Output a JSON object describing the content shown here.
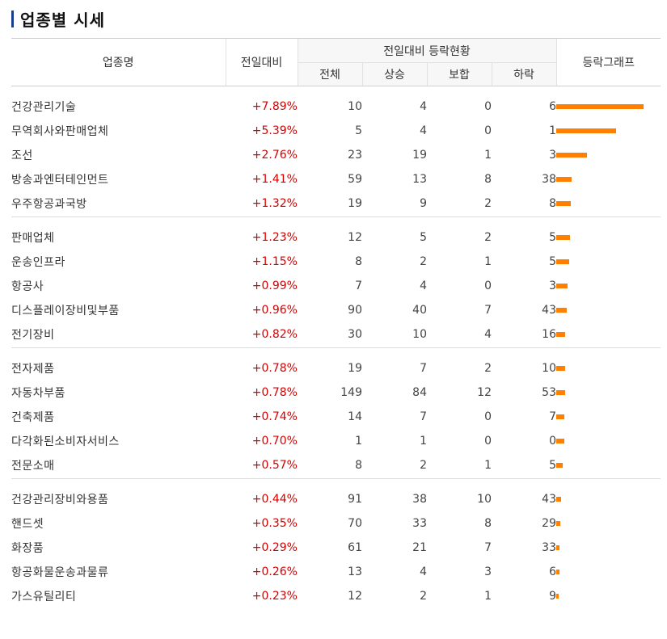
{
  "title": "업종별 시세",
  "headers": {
    "name": "업종명",
    "change": "전일대비",
    "status_group": "전일대비 등락현황",
    "total": "전체",
    "up": "상승",
    "flat": "보합",
    "down": "하락",
    "graph": "등락그래프"
  },
  "colors": {
    "accent": "#1a3d8f",
    "rise": "#d60000",
    "bar": "#ff7f00"
  },
  "groups": [
    [
      {
        "name": "건강관리기술",
        "change": "+7.89%",
        "pct": 7.89,
        "total": "10",
        "up": "4",
        "flat": "0",
        "down": "6"
      },
      {
        "name": "무역회사와판매업체",
        "change": "+5.39%",
        "pct": 5.39,
        "total": "5",
        "up": "4",
        "flat": "0",
        "down": "1"
      },
      {
        "name": "조선",
        "change": "+2.76%",
        "pct": 2.76,
        "total": "23",
        "up": "19",
        "flat": "1",
        "down": "3"
      },
      {
        "name": "방송과엔터테인먼트",
        "change": "+1.41%",
        "pct": 1.41,
        "total": "59",
        "up": "13",
        "flat": "8",
        "down": "38"
      },
      {
        "name": "우주항공과국방",
        "change": "+1.32%",
        "pct": 1.32,
        "total": "19",
        "up": "9",
        "flat": "2",
        "down": "8"
      }
    ],
    [
      {
        "name": "판매업체",
        "change": "+1.23%",
        "pct": 1.23,
        "total": "12",
        "up": "5",
        "flat": "2",
        "down": "5"
      },
      {
        "name": "운송인프라",
        "change": "+1.15%",
        "pct": 1.15,
        "total": "8",
        "up": "2",
        "flat": "1",
        "down": "5"
      },
      {
        "name": "항공사",
        "change": "+0.99%",
        "pct": 0.99,
        "total": "7",
        "up": "4",
        "flat": "0",
        "down": "3"
      },
      {
        "name": "디스플레이장비및부품",
        "change": "+0.96%",
        "pct": 0.96,
        "total": "90",
        "up": "40",
        "flat": "7",
        "down": "43"
      },
      {
        "name": "전기장비",
        "change": "+0.82%",
        "pct": 0.82,
        "total": "30",
        "up": "10",
        "flat": "4",
        "down": "16"
      }
    ],
    [
      {
        "name": "전자제품",
        "change": "+0.78%",
        "pct": 0.78,
        "total": "19",
        "up": "7",
        "flat": "2",
        "down": "10"
      },
      {
        "name": "자동차부품",
        "change": "+0.78%",
        "pct": 0.78,
        "total": "149",
        "up": "84",
        "flat": "12",
        "down": "53"
      },
      {
        "name": "건축제품",
        "change": "+0.74%",
        "pct": 0.74,
        "total": "14",
        "up": "7",
        "flat": "0",
        "down": "7"
      },
      {
        "name": "다각화된소비자서비스",
        "change": "+0.70%",
        "pct": 0.7,
        "total": "1",
        "up": "1",
        "flat": "0",
        "down": "0"
      },
      {
        "name": "전문소매",
        "change": "+0.57%",
        "pct": 0.57,
        "total": "8",
        "up": "2",
        "flat": "1",
        "down": "5"
      }
    ],
    [
      {
        "name": "건강관리장비와용품",
        "change": "+0.44%",
        "pct": 0.44,
        "total": "91",
        "up": "38",
        "flat": "10",
        "down": "43"
      },
      {
        "name": "핸드셋",
        "change": "+0.35%",
        "pct": 0.35,
        "total": "70",
        "up": "33",
        "flat": "8",
        "down": "29"
      },
      {
        "name": "화장품",
        "change": "+0.29%",
        "pct": 0.29,
        "total": "61",
        "up": "21",
        "flat": "7",
        "down": "33"
      },
      {
        "name": "항공화물운송과물류",
        "change": "+0.26%",
        "pct": 0.26,
        "total": "13",
        "up": "4",
        "flat": "3",
        "down": "6"
      },
      {
        "name": "가스유틸리티",
        "change": "+0.23%",
        "pct": 0.23,
        "total": "12",
        "up": "2",
        "flat": "1",
        "down": "9"
      }
    ]
  ]
}
